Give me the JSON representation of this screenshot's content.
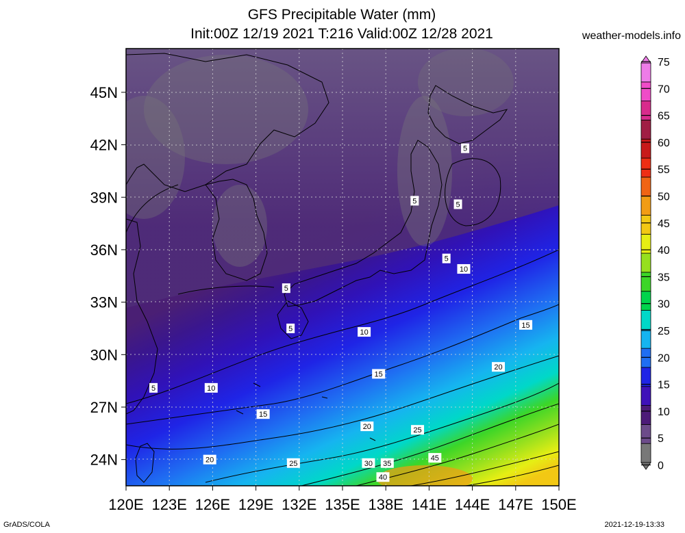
{
  "title": {
    "line1": "GFS Precipitable Water (mm)",
    "line2": "Init:00Z 12/19 2021 T:216 Valid:00Z 12/28 2021"
  },
  "site_label": "weather-models.info",
  "footer": {
    "left": "GrADS/COLA",
    "right": "2021-12-19-13:33"
  },
  "map": {
    "lon_ticks": [
      "120E",
      "123E",
      "126E",
      "129E",
      "132E",
      "135E",
      "138E",
      "141E",
      "144E",
      "147E",
      "150E"
    ],
    "lat_ticks": [
      "45N",
      "42N",
      "39N",
      "36N",
      "33N",
      "30N",
      "27N",
      "24N"
    ],
    "lon_range": [
      120,
      150
    ],
    "lat_range": [
      22.5,
      47.5
    ],
    "contour_labels": [
      {
        "text": "5",
        "lon": 143.5,
        "lat": 41.8
      },
      {
        "text": "5",
        "lon": 140.0,
        "lat": 38.8
      },
      {
        "text": "5",
        "lon": 143.0,
        "lat": 38.6
      },
      {
        "text": "5",
        "lon": 142.2,
        "lat": 35.5
      },
      {
        "text": "5",
        "lon": 131.1,
        "lat": 33.8
      },
      {
        "text": "5",
        "lon": 131.4,
        "lat": 31.5
      },
      {
        "text": "5",
        "lon": 121.9,
        "lat": 28.1
      },
      {
        "text": "10",
        "lon": 143.4,
        "lat": 34.9
      },
      {
        "text": "10",
        "lon": 136.5,
        "lat": 31.3
      },
      {
        "text": "10",
        "lon": 125.9,
        "lat": 28.1
      },
      {
        "text": "15",
        "lon": 147.7,
        "lat": 31.7
      },
      {
        "text": "15",
        "lon": 137.5,
        "lat": 28.9
      },
      {
        "text": "15",
        "lon": 129.5,
        "lat": 26.6
      },
      {
        "text": "20",
        "lon": 145.8,
        "lat": 29.3
      },
      {
        "text": "20",
        "lon": 136.7,
        "lat": 25.9
      },
      {
        "text": "20",
        "lon": 125.8,
        "lat": 24.0
      },
      {
        "text": "25",
        "lon": 140.2,
        "lat": 25.7
      },
      {
        "text": "25",
        "lon": 131.6,
        "lat": 23.8
      },
      {
        "text": "30",
        "lon": 136.8,
        "lat": 23.8
      },
      {
        "text": "35",
        "lon": 138.1,
        "lat": 23.8
      },
      {
        "text": "40",
        "lon": 137.8,
        "lat": 23.0
      },
      {
        "text": "45",
        "lon": 141.4,
        "lat": 24.1
      }
    ]
  },
  "colorbar": {
    "levels": [
      "75",
      "70",
      "65",
      "60",
      "55",
      "50",
      "45",
      "40",
      "35",
      "30",
      "25",
      "20",
      "15",
      "10",
      "5",
      "0"
    ],
    "colors": [
      "#787878",
      "#6c4b8a",
      "#4c1a78",
      "#3f12b9",
      "#1f24e6",
      "#1f6ef2",
      "#16b4f0",
      "#00d8c8",
      "#00d44c",
      "#3cd628",
      "#96e01e",
      "#e6ee14",
      "#f2c814",
      "#f29c14",
      "#f06414",
      "#ee2e14",
      "#c81a1a",
      "#a01e44",
      "#d82b8c",
      "#f04cc8",
      "#ee7ce8"
    ]
  }
}
